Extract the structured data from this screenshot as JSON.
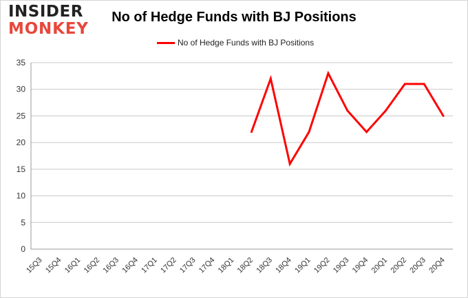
{
  "logo": {
    "line1": "INSIDER",
    "line2": "MONKEY"
  },
  "chart_data": {
    "type": "line",
    "title": "No of Hedge Funds with BJ Positions",
    "xlabel": "",
    "ylabel": "",
    "categories": [
      "15Q3",
      "15Q4",
      "16Q1",
      "16Q2",
      "16Q3",
      "16Q4",
      "17Q1",
      "17Q2",
      "17Q3",
      "17Q4",
      "18Q1",
      "18Q2",
      "18Q3",
      "18Q4",
      "19Q1",
      "19Q2",
      "19Q3",
      "19Q4",
      "20Q1",
      "20Q2",
      "20Q3",
      "20Q4"
    ],
    "series": [
      {
        "name": "No of Hedge Funds with BJ Positions",
        "color": "#ff0000",
        "values": [
          null,
          null,
          null,
          null,
          null,
          null,
          null,
          null,
          null,
          null,
          null,
          22,
          32,
          16,
          22,
          33,
          26,
          22,
          26,
          31,
          31,
          25
        ]
      }
    ],
    "ylim": [
      0,
      35
    ],
    "yticks": [
      0,
      5,
      10,
      15,
      20,
      25,
      30,
      35
    ],
    "grid": true,
    "legend_position": "top"
  }
}
